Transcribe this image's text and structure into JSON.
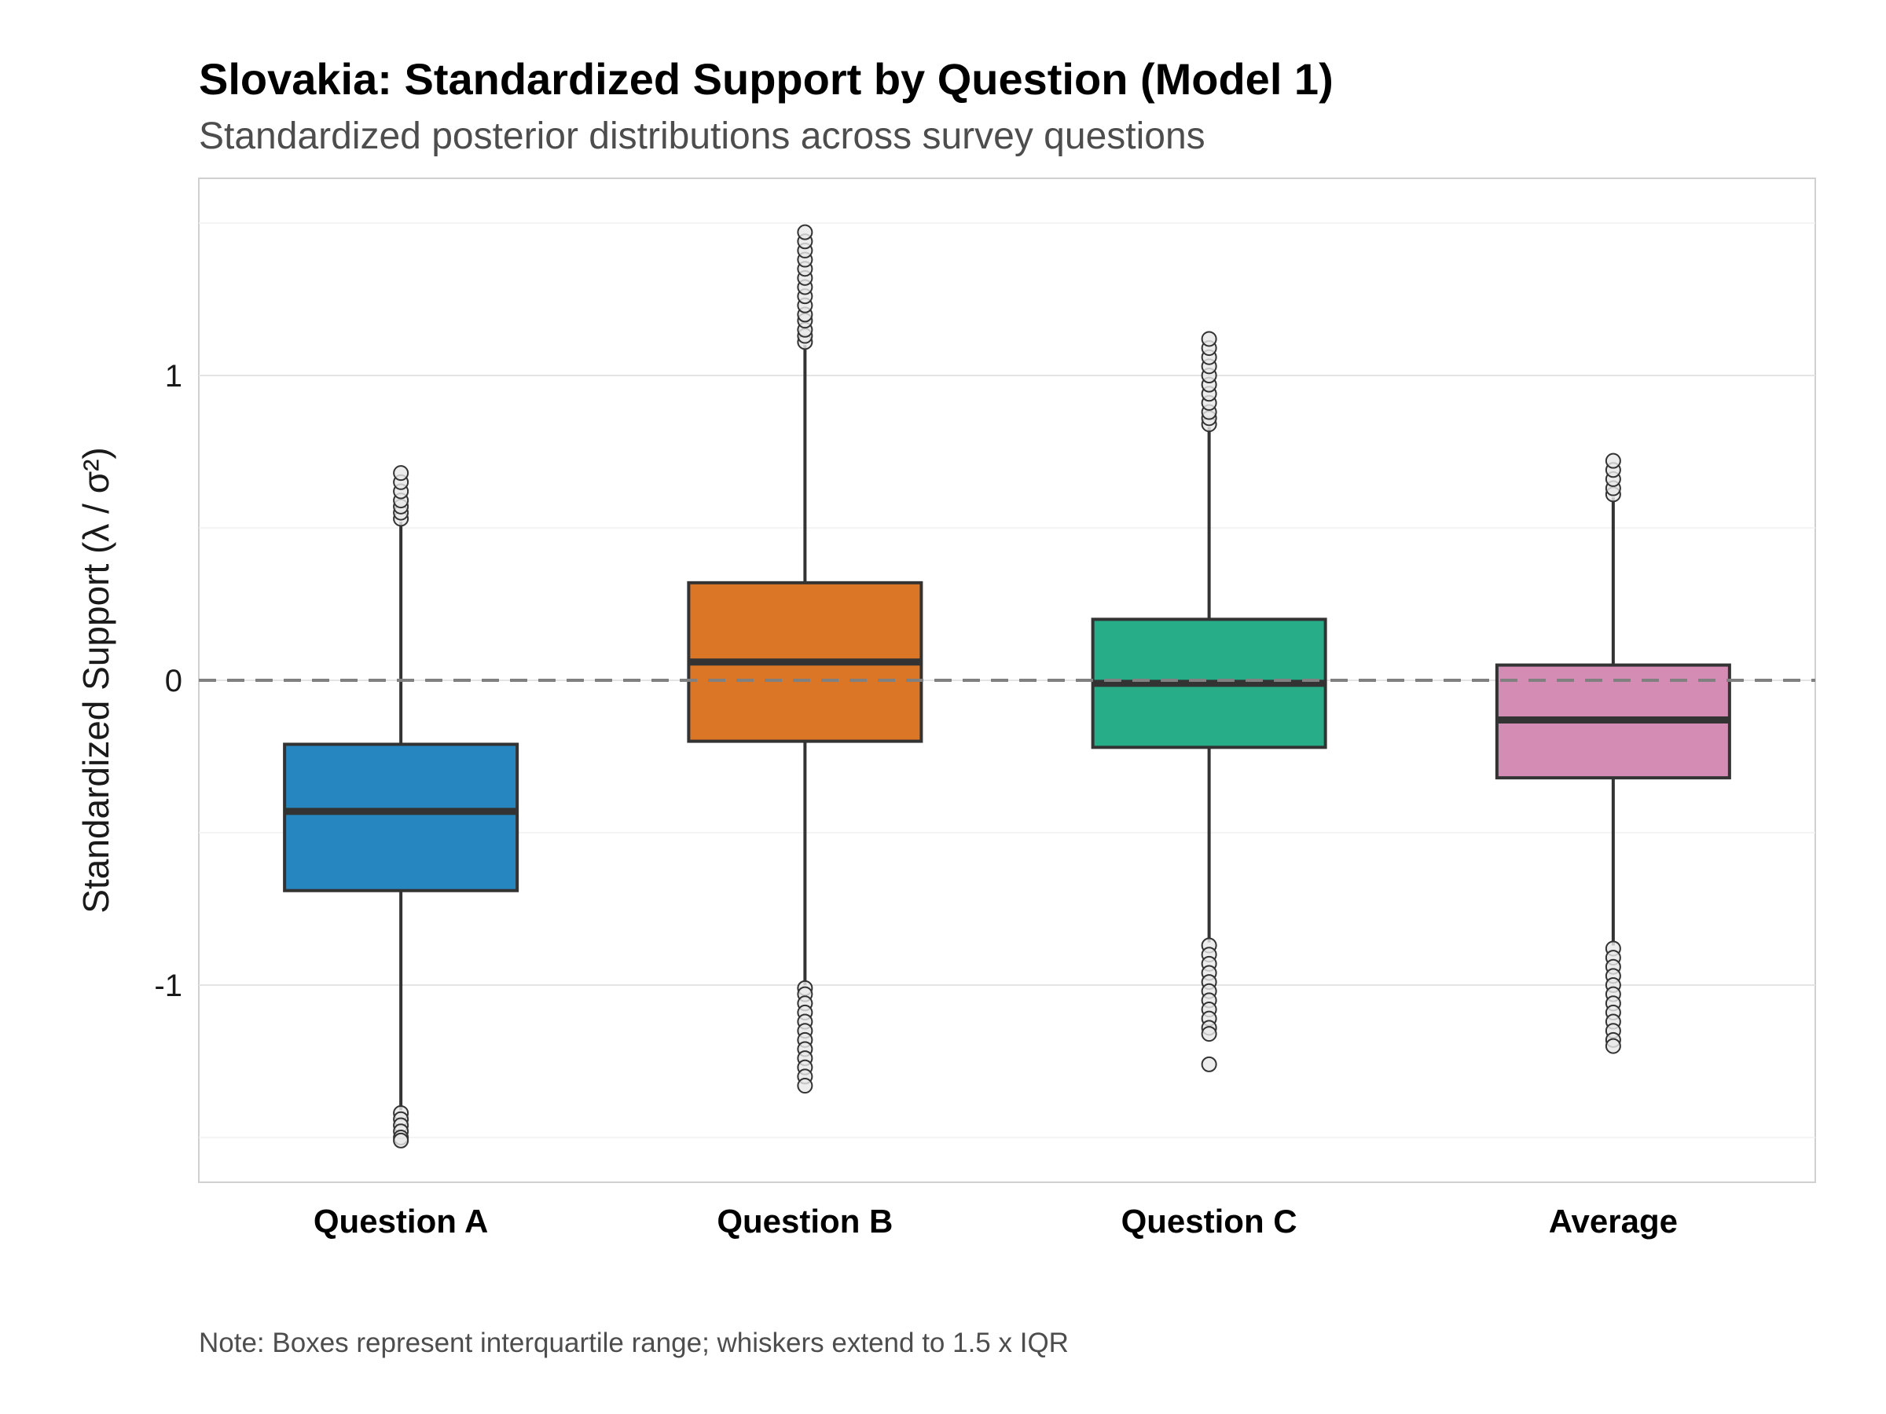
{
  "chart_data": {
    "type": "boxplot",
    "title": "Slovakia: Standardized Support by Question (Model 1)",
    "subtitle": "Standardized posterior distributions across survey questions",
    "xlabel": "",
    "ylabel": "Standardized Support (λ / σ²)",
    "note": "Note: Boxes represent interquartile range; whiskers extend to 1.5 x IQR",
    "ylim": [
      -1.65,
      1.65
    ],
    "yticks": [
      -1,
      0,
      1
    ],
    "ytick_labels": [
      "-1",
      "0",
      "1"
    ],
    "reference_line": 0,
    "grid": true,
    "legend": "none",
    "categories": [
      "Question A",
      "Question B",
      "Question C",
      "Average"
    ],
    "series": [
      {
        "category": "Question A",
        "color": "#2687c0",
        "q1": -0.69,
        "median": -0.43,
        "q3": -0.21,
        "whisker_low": -1.41,
        "whisker_high": 0.52,
        "outliers": [
          0.53,
          0.55,
          0.57,
          0.59,
          0.62,
          0.65,
          0.68,
          -1.42,
          -1.44,
          -1.46,
          -1.48,
          -1.5,
          -1.51
        ]
      },
      {
        "category": "Question B",
        "color": "#dc7627",
        "q1": -0.2,
        "median": 0.06,
        "q3": 0.32,
        "whisker_low": -1.0,
        "whisker_high": 1.1,
        "outliers": [
          1.11,
          1.13,
          1.15,
          1.18,
          1.2,
          1.23,
          1.26,
          1.29,
          1.32,
          1.35,
          1.38,
          1.41,
          1.44,
          1.47,
          -1.01,
          -1.03,
          -1.06,
          -1.09,
          -1.12,
          -1.15,
          -1.18,
          -1.21,
          -1.24,
          -1.27,
          -1.3,
          -1.33
        ]
      },
      {
        "category": "Question C",
        "color": "#27ae89",
        "q1": -0.22,
        "median": -0.01,
        "q3": 0.2,
        "whisker_low": -0.86,
        "whisker_high": 0.83,
        "outliers": [
          0.84,
          0.86,
          0.88,
          0.91,
          0.94,
          0.97,
          1.0,
          1.03,
          1.06,
          1.09,
          1.12,
          -0.87,
          -0.9,
          -0.93,
          -0.96,
          -0.99,
          -1.02,
          -1.05,
          -1.08,
          -1.11,
          -1.14,
          -1.16,
          -1.26
        ]
      },
      {
        "category": "Average",
        "color": "#d48bb4",
        "q1": -0.32,
        "median": -0.13,
        "q3": 0.05,
        "whisker_low": -0.87,
        "whisker_high": 0.6,
        "outliers": [
          0.61,
          0.63,
          0.66,
          0.69,
          0.72,
          -0.88,
          -0.91,
          -0.94,
          -0.97,
          -1.0,
          -1.03,
          -1.06,
          -1.09,
          -1.12,
          -1.15,
          -1.18,
          -1.2
        ]
      }
    ]
  }
}
